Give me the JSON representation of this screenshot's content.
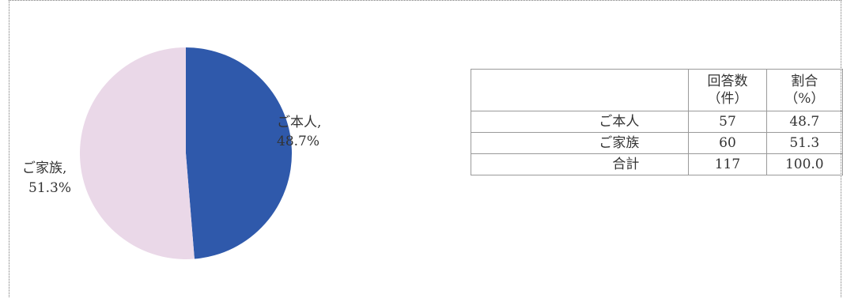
{
  "chart_data": {
    "type": "pie",
    "slices": [
      {
        "label": "ご本人",
        "value": 48.7,
        "label_text": "ご本人,",
        "value_text": "48.7%",
        "color": "#2f59ab"
      },
      {
        "label": "ご家族",
        "value": 51.3,
        "label_text": "ご家族,",
        "value_text": "51.3%",
        "color": "#ead8e8"
      }
    ]
  },
  "table": {
    "headers": [
      {
        "line1": "",
        "line2": ""
      },
      {
        "line1": "回答数",
        "line2": "（件）"
      },
      {
        "line1": "割合",
        "line2": "（%）"
      }
    ],
    "rows": [
      {
        "label": "ご本人",
        "count": "57",
        "pct": "48.7"
      },
      {
        "label": "ご家族",
        "count": "60",
        "pct": "51.3"
      },
      {
        "label": "合計",
        "count": "117",
        "pct": "100.0"
      }
    ]
  }
}
